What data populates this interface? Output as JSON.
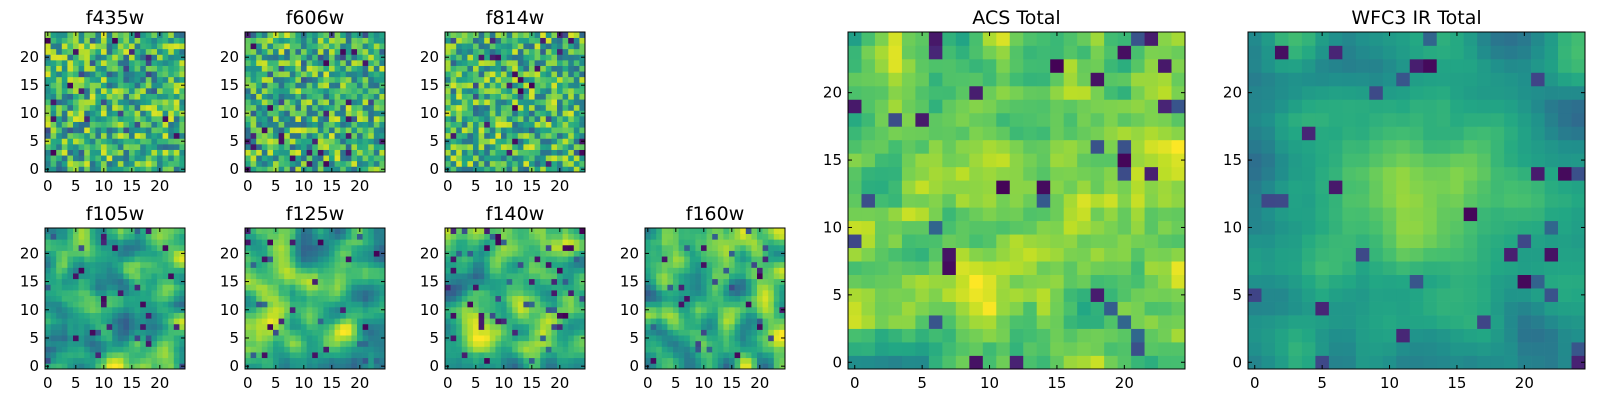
{
  "figure": {
    "type": "heatmap",
    "colormap": "viridis",
    "colors": {
      "low": "#440154",
      "mid": "#21918c",
      "high": "#fde725",
      "frame": "#000000"
    }
  },
  "chart_data": [
    {
      "type": "heatmap",
      "title": "f435w",
      "xticks": [
        "0",
        "5",
        "10",
        "15",
        "20"
      ],
      "yticks": [
        "0",
        "5",
        "10",
        "15",
        "20"
      ],
      "xlim": [
        0,
        25
      ],
      "ylim": [
        0,
        25
      ],
      "grid": false,
      "legend": "none",
      "value_range": [
        0,
        1
      ],
      "seed": 11,
      "texture": "noisy"
    },
    {
      "type": "heatmap",
      "title": "f606w",
      "xticks": [
        "0",
        "5",
        "10",
        "15",
        "20"
      ],
      "yticks": [
        "0",
        "5",
        "10",
        "15",
        "20"
      ],
      "xlim": [
        0,
        25
      ],
      "ylim": [
        0,
        25
      ],
      "grid": false,
      "legend": "none",
      "value_range": [
        0,
        1
      ],
      "seed": 23,
      "texture": "noisy"
    },
    {
      "type": "heatmap",
      "title": "f814w",
      "xticks": [
        "0",
        "5",
        "10",
        "15",
        "20"
      ],
      "yticks": [
        "0",
        "5",
        "10",
        "15",
        "20"
      ],
      "xlim": [
        0,
        25
      ],
      "ylim": [
        0,
        25
      ],
      "grid": false,
      "legend": "none",
      "value_range": [
        0,
        1
      ],
      "seed": 37,
      "texture": "noisy"
    },
    {
      "type": "heatmap",
      "title": "f105w",
      "xticks": [
        "0",
        "5",
        "10",
        "15",
        "20"
      ],
      "yticks": [
        "0",
        "5",
        "10",
        "15",
        "20"
      ],
      "xlim": [
        0,
        25
      ],
      "ylim": [
        0,
        25
      ],
      "grid": false,
      "legend": "none",
      "value_range": [
        0,
        1
      ],
      "seed": 41,
      "texture": "smooth"
    },
    {
      "type": "heatmap",
      "title": "f125w",
      "xticks": [
        "0",
        "5",
        "10",
        "15",
        "20"
      ],
      "yticks": [
        "0",
        "5",
        "10",
        "15",
        "20"
      ],
      "xlim": [
        0,
        25
      ],
      "ylim": [
        0,
        25
      ],
      "grid": false,
      "legend": "none",
      "value_range": [
        0,
        1
      ],
      "seed": 53,
      "texture": "smooth"
    },
    {
      "type": "heatmap",
      "title": "f140w",
      "xticks": [
        "0",
        "5",
        "10",
        "15",
        "20"
      ],
      "yticks": [
        "0",
        "5",
        "10",
        "15",
        "20"
      ],
      "xlim": [
        0,
        25
      ],
      "ylim": [
        0,
        25
      ],
      "grid": false,
      "legend": "none",
      "value_range": [
        0,
        1
      ],
      "seed": 67,
      "texture": "smooth"
    },
    {
      "type": "heatmap",
      "title": "f160w",
      "xticks": [
        "0",
        "5",
        "10",
        "15",
        "20"
      ],
      "yticks": [
        "0",
        "5",
        "10",
        "15",
        "20"
      ],
      "xlim": [
        0,
        25
      ],
      "ylim": [
        0,
        25
      ],
      "grid": false,
      "legend": "none",
      "value_range": [
        0,
        1
      ],
      "seed": 79,
      "texture": "smooth"
    },
    {
      "type": "heatmap",
      "title": "ACS Total",
      "xticks": [
        "0",
        "5",
        "10",
        "15",
        "20"
      ],
      "yticks": [
        "0",
        "5",
        "10",
        "15",
        "20"
      ],
      "xlim": [
        0,
        25
      ],
      "ylim": [
        0,
        25
      ],
      "grid": false,
      "legend": "none",
      "value_range": [
        0,
        1
      ],
      "seed": 97,
      "texture": "bright"
    },
    {
      "type": "heatmap",
      "title": "WFC3 IR Total",
      "xticks": [
        "0",
        "5",
        "10",
        "15",
        "20"
      ],
      "yticks": [
        "0",
        "5",
        "10",
        "15",
        "20"
      ],
      "xlim": [
        0,
        25
      ],
      "ylim": [
        0,
        25
      ],
      "grid": false,
      "legend": "none",
      "value_range": [
        0,
        1
      ],
      "seed": 113,
      "texture": "centered"
    }
  ]
}
